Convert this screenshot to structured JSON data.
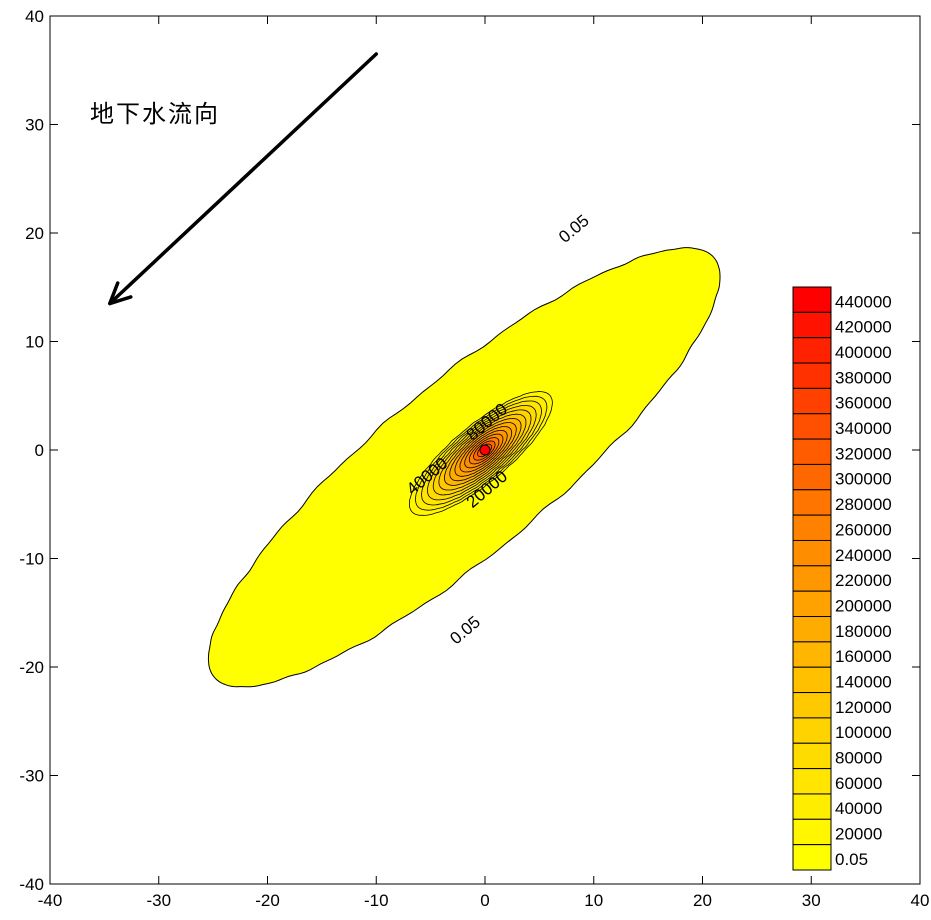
{
  "chart_data": {
    "type": "contour",
    "xlim": [
      -40,
      40
    ],
    "ylim": [
      -40,
      40
    ],
    "x_ticks": [
      -40,
      -30,
      -20,
      -10,
      0,
      10,
      20,
      30,
      40
    ],
    "y_ticks": [
      -40,
      -30,
      -20,
      -10,
      0,
      10,
      20,
      30,
      40
    ],
    "x_tick_labels": [
      "-40",
      "-30",
      "-20",
      "-10",
      "0",
      "10",
      "20",
      "30",
      "40"
    ],
    "y_tick_labels": [
      "-40",
      "-30",
      "-20",
      "-10",
      "0",
      "10",
      "20",
      "30",
      "40"
    ],
    "grid": false,
    "source_point": [
      0,
      0
    ],
    "plume_axis_angle_deg": 40,
    "outer_contour_level": 0.05,
    "outer_contour_extent": {
      "along_axis_min": -32.5,
      "along_axis_max": 27.5,
      "across_axis_half_width": 7.8
    },
    "inner_contour_region_extent": {
      "along_axis_min": -9,
      "along_axis_max": 8,
      "across_axis_half_width": 2.6
    },
    "contour_labels": [
      {
        "text": "0.05",
        "x": 8.5,
        "y": 20
      },
      {
        "text": "0.05",
        "x": -1.5,
        "y": -17
      },
      {
        "text": "80000",
        "x": 0.5,
        "y": 2.2
      },
      {
        "text": "40000",
        "x": -5,
        "y": -2.8
      },
      {
        "text": "20000",
        "x": 0.5,
        "y": -4
      }
    ],
    "colorbar": {
      "placement": "right",
      "labels": [
        "440000",
        "420000",
        "400000",
        "380000",
        "360000",
        "340000",
        "320000",
        "300000",
        "280000",
        "260000",
        "240000",
        "220000",
        "200000",
        "180000",
        "160000",
        "140000",
        "120000",
        "100000",
        "80000",
        "60000",
        "40000",
        "20000",
        "0.05"
      ],
      "colors": [
        "#ff0000",
        "#ff1200",
        "#ff2200",
        "#ff3100",
        "#ff4000",
        "#ff4f00",
        "#ff5c00",
        "#ff6800",
        "#ff7500",
        "#ff8100",
        "#ff8d00",
        "#ff9800",
        "#ffa200",
        "#ffac00",
        "#ffb600",
        "#ffc000",
        "#ffc900",
        "#ffd300",
        "#ffdc00",
        "#ffe500",
        "#ffed00",
        "#fff600",
        "#ffff00"
      ]
    },
    "annotation": {
      "text": "地下水流向",
      "arrow_from": [
        -10,
        36.5
      ],
      "arrow_to": [
        -34.5,
        13.5
      ]
    }
  }
}
